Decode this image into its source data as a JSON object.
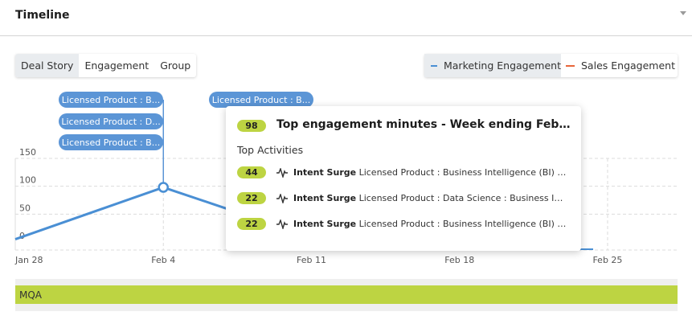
{
  "header": {
    "title": "Timeline",
    "collapse_icon": "caret-down-icon"
  },
  "view_tabs": [
    {
      "label": "Deal Story",
      "active": true
    },
    {
      "label": "Engagement",
      "active": false
    },
    {
      "label": "Group",
      "active": false
    }
  ],
  "legend": [
    {
      "label": "Marketing Engagement",
      "color": "#4a8fd4"
    },
    {
      "label": "Sales Engagement",
      "color": "#e8663a"
    }
  ],
  "event_labels": [
    "Licensed Product : B...",
    "Licensed Product : D...",
    "Licensed Product : B...",
    "Licensed Product : B..."
  ],
  "stage_bar": {
    "label": "MQA",
    "color": "#bdd442"
  },
  "tooltip": {
    "score": "98",
    "title": "Top engagement minutes - Week ending February ...",
    "subtitle": "Top Activities",
    "activities": [
      {
        "score": "44",
        "type": "Intent Surge",
        "detail": "Licensed Product : Business Intelligence (BI) : Busine..."
      },
      {
        "score": "22",
        "type": "Intent Surge",
        "detail": "Licensed Product : Data Science : Business Intelligen..."
      },
      {
        "score": "22",
        "type": "Intent Surge",
        "detail": "Licensed Product : Business Intelligence (BI) : Busine..."
      }
    ]
  },
  "chart_data": {
    "type": "line",
    "x_tick_labels": [
      "Jan 28",
      "Feb 4",
      "Feb 11",
      "Feb 18",
      "Feb 25"
    ],
    "y_tick_labels": [
      "0",
      "50",
      "100",
      "150"
    ],
    "ylim": [
      0,
      150
    ],
    "grid": true,
    "series": [
      {
        "name": "Marketing Engagement",
        "color": "#4a8fd4",
        "points": [
          {
            "x": "Jan 28",
            "y": 5
          },
          {
            "x": "Feb 4",
            "y": 98
          },
          {
            "x": "Feb 8",
            "y": 47
          }
        ]
      },
      {
        "name": "Sales Engagement",
        "color": "#e8663a",
        "points": []
      }
    ]
  }
}
